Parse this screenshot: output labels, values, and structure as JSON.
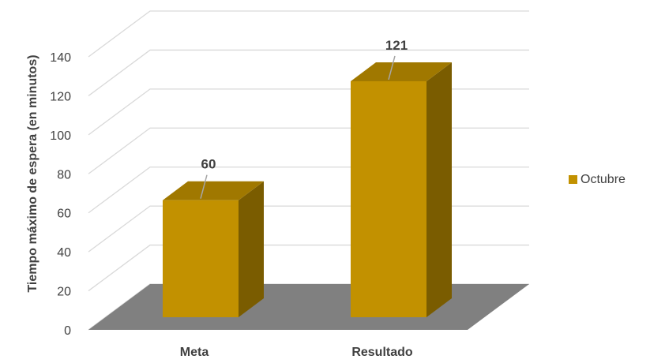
{
  "chart_data": {
    "type": "bar",
    "style": "3d-column",
    "categories": [
      "Meta",
      "Resultado"
    ],
    "series": [
      {
        "name": "Octubre",
        "values": [
          60,
          121
        ]
      }
    ],
    "ylabel": "Tiempo máximo de espera (en minutos)",
    "xlabel": "",
    "ylim": [
      0,
      140
    ],
    "yticks": [
      0,
      20,
      40,
      60,
      80,
      100,
      120,
      140
    ],
    "data_labels": [
      "60",
      "121"
    ],
    "grid": true,
    "legend": "right",
    "colors": {
      "bar_front": "#C29100",
      "bar_top": "#A07800",
      "bar_side": "#7A5C00",
      "floor": "#808080",
      "grid": "#D9D9D9",
      "text": "#404040"
    }
  }
}
